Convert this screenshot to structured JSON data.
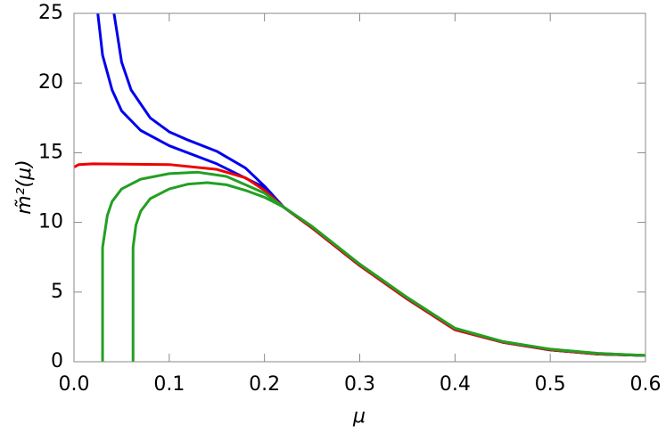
{
  "chart_data": {
    "type": "line",
    "x_label": "μ",
    "y_label": "m̃²(μ)",
    "xlim": [
      0,
      0.6
    ],
    "ylim": [
      0,
      25
    ],
    "xticks": [
      {
        "value": 0,
        "label": "0.0"
      },
      0.1,
      0.2,
      0.3,
      0.4,
      0.5,
      0.6
    ],
    "yticks": [
      0,
      5,
      10,
      15,
      20,
      25
    ],
    "series": [
      {
        "color": "#0000ee",
        "x": [
          0.025,
          0.03,
          0.04,
          0.05,
          0.07,
          0.1,
          0.15,
          0.2,
          0.22,
          0.25,
          0.3,
          0.35,
          0.4,
          0.45,
          0.5,
          0.55,
          0.6
        ],
        "values": [
          25,
          22,
          19.5,
          18,
          16.6,
          15.5,
          14.2,
          12.5,
          11.1,
          9.6,
          6.9,
          4.5,
          2.3,
          1.4,
          0.85,
          0.55,
          0.45
        ]
      },
      {
        "color": "#0000ee",
        "x": [
          0.042,
          0.05,
          0.06,
          0.08,
          0.1,
          0.12,
          0.15,
          0.18,
          0.2,
          0.22,
          0.25,
          0.3,
          0.35,
          0.4,
          0.45,
          0.5,
          0.55,
          0.6
        ],
        "values": [
          25,
          21.5,
          19.5,
          17.5,
          16.5,
          15.9,
          15.1,
          13.9,
          12.6,
          11.1,
          9.6,
          6.9,
          4.5,
          2.3,
          1.4,
          0.85,
          0.55,
          0.45
        ]
      },
      {
        "color": "#ee0000",
        "x": [
          0.001,
          0.005,
          0.02,
          0.1,
          0.15,
          0.18,
          0.2,
          0.22,
          0.25,
          0.3,
          0.35,
          0.4,
          0.45,
          0.5,
          0.55,
          0.6
        ],
        "values": [
          14.0,
          14.15,
          14.2,
          14.15,
          13.8,
          13.2,
          12.3,
          11.1,
          9.6,
          6.9,
          4.5,
          2.3,
          1.4,
          0.85,
          0.55,
          0.45
        ]
      },
      {
        "color": "#22a022",
        "x": [
          0.03,
          0.03,
          0.035,
          0.04,
          0.05,
          0.07,
          0.1,
          0.13,
          0.16,
          0.2,
          0.22,
          0.25,
          0.3,
          0.35,
          0.4,
          0.45,
          0.5,
          0.55,
          0.6
        ],
        "values": [
          0,
          8.2,
          10.5,
          11.5,
          12.4,
          13.1,
          13.5,
          13.6,
          13.3,
          12.1,
          11.1,
          9.7,
          7.0,
          4.6,
          2.4,
          1.45,
          0.9,
          0.6,
          0.45
        ]
      },
      {
        "color": "#22a022",
        "x": [
          0.062,
          0.062,
          0.065,
          0.07,
          0.08,
          0.1,
          0.12,
          0.14,
          0.16,
          0.18,
          0.2,
          0.22,
          0.25,
          0.3,
          0.35,
          0.4,
          0.45,
          0.5,
          0.55,
          0.6
        ],
        "values": [
          0,
          8.2,
          9.8,
          10.8,
          11.7,
          12.4,
          12.75,
          12.85,
          12.7,
          12.3,
          11.8,
          11.1,
          9.7,
          7.0,
          4.6,
          2.4,
          1.45,
          0.9,
          0.6,
          0.45
        ]
      }
    ]
  }
}
